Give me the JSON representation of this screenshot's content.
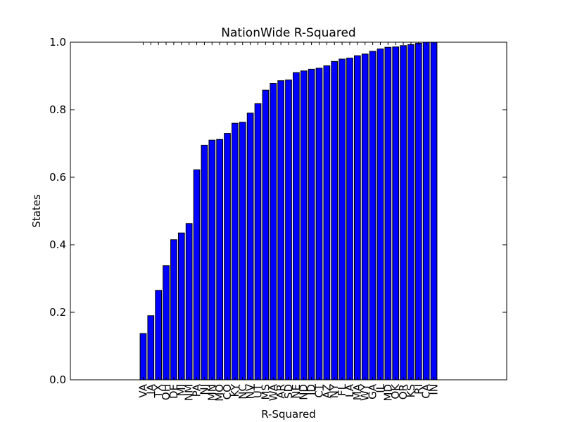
{
  "chart_data": {
    "type": "bar",
    "title": "NationWide R-Squared",
    "x_label": "R-Squared",
    "y_label": "States",
    "categories": [
      "VA",
      "IA",
      "TX",
      "OH",
      "DE",
      "MI",
      "NM",
      "PA",
      "NJ",
      "MN",
      "MO",
      "CO",
      "KY",
      "NC",
      "NV",
      "UT",
      "MS",
      "WA",
      "AR",
      "SD",
      "NE",
      "ND",
      "ID",
      "CT",
      "AZ",
      "NY",
      "FL",
      "LA",
      "MA",
      "WY",
      "GA",
      "IL",
      "MD",
      "OK",
      "OR",
      "KS",
      "RI",
      "CA",
      "IN"
    ],
    "values": [
      0.137,
      0.19,
      0.265,
      0.338,
      0.415,
      0.435,
      0.463,
      0.622,
      0.695,
      0.71,
      0.712,
      0.73,
      0.76,
      0.763,
      0.79,
      0.818,
      0.858,
      0.878,
      0.886,
      0.888,
      0.91,
      0.915,
      0.92,
      0.923,
      0.93,
      0.943,
      0.95,
      0.953,
      0.96,
      0.965,
      0.973,
      0.98,
      0.985,
      0.986,
      0.99,
      0.993,
      0.997,
      1.0,
      1.0
    ],
    "color": "#0000ff",
    "ylim": [
      0,
      1
    ],
    "yticks": [
      {
        "value": 0,
        "label": "0.0"
      },
      0.2,
      0.4,
      0.6,
      0.8,
      {
        "value": 1,
        "label": "1.0"
      }
    ],
    "grid": false
  }
}
